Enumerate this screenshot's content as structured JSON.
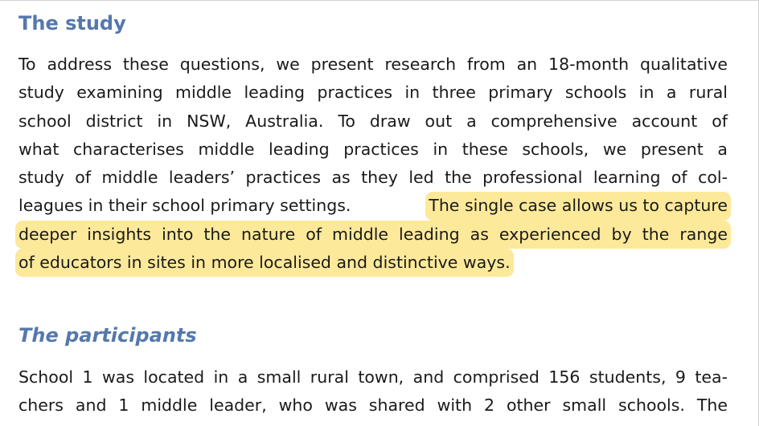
{
  "section_study": {
    "title": "The study",
    "lines": [
      "To address these questions, we present research from an 18-month qualitative",
      "study examining middle leading practices in three primary schools in a rural",
      "school district in NSW, Australia. To draw out a comprehensive account of",
      "what characterises middle leading practices in these schools, we present a",
      "study of middle leaders’ practices as they led the professional learning of col-"
    ],
    "mixed_line_plain": "leagues in their school primary settings.",
    "mixed_line_highlight": "The single case allows us to capture",
    "highlight_line_2": "deeper insights into the nature of middle leading as experienced by the range",
    "highlight_line_3": "of educators in sites in more localised and distinctive ways."
  },
  "section_participants": {
    "title": "The participants",
    "lines": [
      "School 1 was located in a small rural town, and comprised 156 students, 9 tea-",
      "chers and 1 middle leader, who was shared with 2 other small schools. The"
    ]
  },
  "colors": {
    "heading": "#5578ad",
    "highlight": "#fde99a",
    "text": "#1a1a1a"
  }
}
